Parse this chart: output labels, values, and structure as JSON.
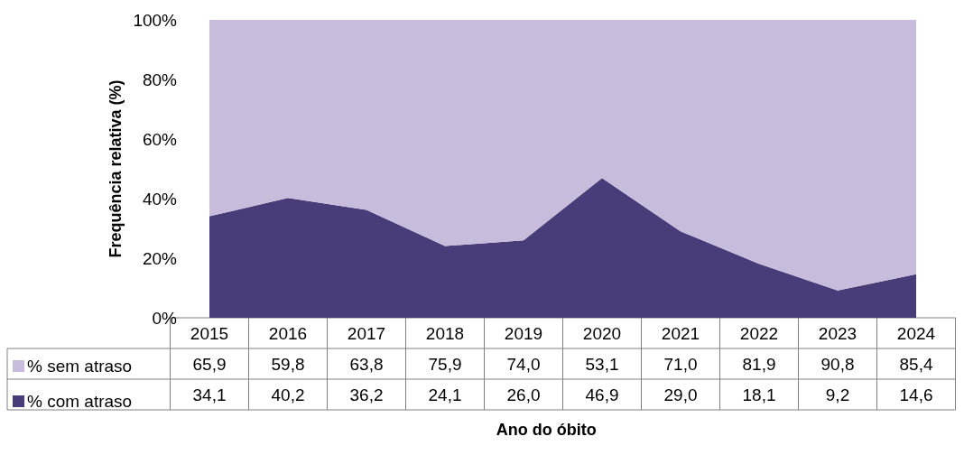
{
  "chart_data": {
    "type": "area",
    "stacked": true,
    "xlabel": "Ano do óbito",
    "ylabel": "Frequência relativa (%)",
    "categories": [
      "2015",
      "2016",
      "2017",
      "2018",
      "2019",
      "2020",
      "2021",
      "2022",
      "2023",
      "2024"
    ],
    "series": [
      {
        "name": "% com atraso",
        "color": "#483d78",
        "values": [
          34.1,
          40.2,
          36.2,
          24.1,
          26.0,
          46.9,
          29.0,
          18.1,
          9.2,
          14.6
        ],
        "value_labels": [
          "34,1",
          "40,2",
          "36,2",
          "24,1",
          "26,0",
          "46,9",
          "29,0",
          "18,1",
          "9,2",
          "14,6"
        ]
      },
      {
        "name": "% sem atraso",
        "color": "#c8bcdc",
        "values": [
          65.9,
          59.8,
          63.8,
          75.9,
          74.0,
          53.1,
          71.0,
          81.9,
          90.8,
          85.4
        ],
        "value_labels": [
          "65,9",
          "59,8",
          "63,8",
          "75,9",
          "74,0",
          "53,1",
          "71,0",
          "81,9",
          "90,8",
          "85,4"
        ]
      }
    ],
    "ylim": [
      0,
      100
    ],
    "yticks": [
      {
        "value": 0,
        "label": "0%"
      },
      {
        "value": 20,
        "label": "20%"
      },
      {
        "value": 40,
        "label": "40%"
      },
      {
        "value": 60,
        "label": "60%"
      },
      {
        "value": 80,
        "label": "80%"
      },
      {
        "value": 100,
        "label": "100%"
      }
    ],
    "legend": "bottom left"
  }
}
